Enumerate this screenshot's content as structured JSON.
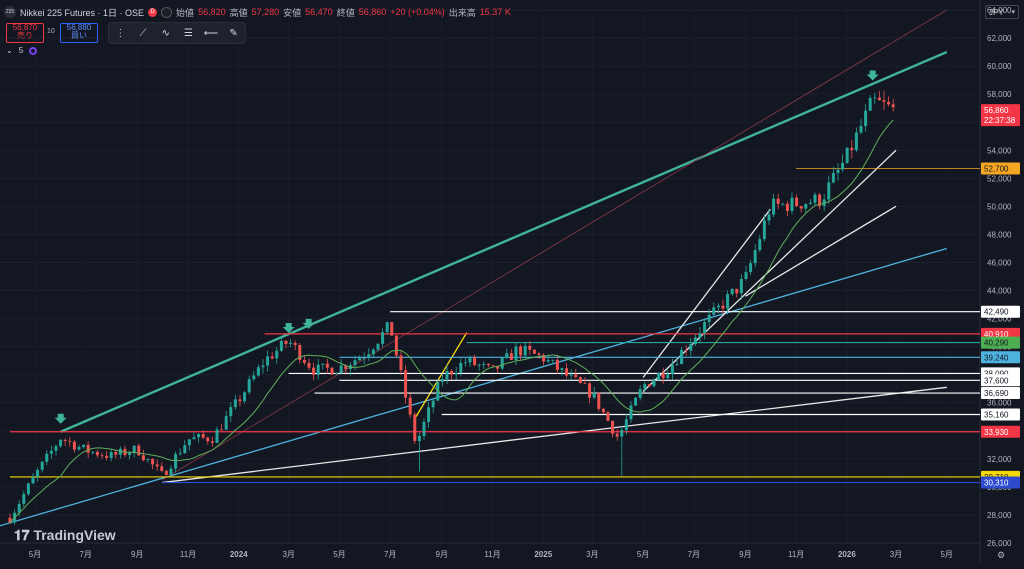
{
  "header": {
    "symbol_badge": "225",
    "title": "Nikkei 225 Futures · 1日 · OSE",
    "delayed_badge": "D",
    "open_label": "始値",
    "open": "56,820",
    "high_label": "高値",
    "high": "57,280",
    "low_label": "安値",
    "low": "56,470",
    "close_label": "終値",
    "close": "56,860",
    "change": "+20 (+0.04%)",
    "volume_label": "出来高",
    "volume": "15.37 K"
  },
  "trade": {
    "sell_price": "56,870",
    "sell_label": "売り",
    "buy_price": "56,880",
    "buy_label": "買い",
    "quantity": "10"
  },
  "indicator": {
    "count": "5"
  },
  "drawing_toolbar": {
    "tools": [
      "trend-line-icon",
      "curve-icon",
      "parallel-channel-icon",
      "ray-icon",
      "pen-icon"
    ]
  },
  "currency": "JPY",
  "branding": "TradingView",
  "colors": {
    "up": "#26a69a",
    "down": "#ef5350",
    "background": "#131722",
    "teal_trend": "#3fb49a",
    "blue_trend": "#4fb3e0",
    "white": "#e8e8e8",
    "red_level": "#f23645",
    "yellow_level": "#f5d90a",
    "navy_level": "#2e4bd0"
  },
  "chart_data": {
    "type": "candlestick",
    "y_axis": {
      "min": 26000,
      "max": 64000,
      "position": "right",
      "ticks": [
        "64,000",
        "62,000",
        "60,000",
        "58,000",
        "56,000",
        "54,000",
        "52,000",
        "50,000",
        "48,000",
        "46,000",
        "44,000",
        "42,000",
        "40,000",
        "38,000",
        "36,000",
        "34,000",
        "32,000",
        "30,000",
        "28,000",
        "26,000"
      ]
    },
    "x_axis": {
      "labels": [
        "5月",
        "7月",
        "9月",
        "11月",
        "2024",
        "3月",
        "5月",
        "7月",
        "9月",
        "11月",
        "2025",
        "3月",
        "5月",
        "7月",
        "9月",
        "11月",
        "2026",
        "3月",
        "5月"
      ]
    },
    "price_series": [
      {
        "date": "2023-04",
        "value": 27800
      },
      {
        "date": "2023-05",
        "value": 30800
      },
      {
        "date": "2023-06",
        "value": 33500
      },
      {
        "date": "2023-07",
        "value": 32600
      },
      {
        "date": "2023-08",
        "value": 32200
      },
      {
        "date": "2023-09",
        "value": 32700
      },
      {
        "date": "2023-10",
        "value": 30800
      },
      {
        "date": "2023-11",
        "value": 33400
      },
      {
        "date": "2023-12",
        "value": 33500
      },
      {
        "date": "2024-01",
        "value": 36200
      },
      {
        "date": "2024-02",
        "value": 39000
      },
      {
        "date": "2024-03",
        "value": 40400
      },
      {
        "date": "2024-04",
        "value": 38300
      },
      {
        "date": "2024-05",
        "value": 38500
      },
      {
        "date": "2024-06",
        "value": 39500
      },
      {
        "date": "2024-07",
        "value": 41500
      },
      {
        "date": "2024-08",
        "value": 33000
      },
      {
        "date": "2024-09",
        "value": 37800
      },
      {
        "date": "2024-10",
        "value": 39000
      },
      {
        "date": "2024-11",
        "value": 38200
      },
      {
        "date": "2024-12",
        "value": 39800
      },
      {
        "date": "2025-01",
        "value": 39200
      },
      {
        "date": "2025-02",
        "value": 37800
      },
      {
        "date": "2025-03",
        "value": 36600
      },
      {
        "date": "2025-04",
        "value": 33500
      },
      {
        "date": "2025-05",
        "value": 37200
      },
      {
        "date": "2025-06",
        "value": 38500
      },
      {
        "date": "2025-07",
        "value": 40700
      },
      {
        "date": "2025-08",
        "value": 42800
      },
      {
        "date": "2025-09",
        "value": 44800
      },
      {
        "date": "2025-10",
        "value": 50000
      },
      {
        "date": "2025-11",
        "value": 50200
      },
      {
        "date": "2025-12",
        "value": 50500
      },
      {
        "date": "2026-01",
        "value": 53500
      },
      {
        "date": "2026-02",
        "value": 57500
      },
      {
        "date": "2026-02-27",
        "value": 56860
      }
    ],
    "horizontal_levels": [
      {
        "value": 42490,
        "label": "42,490",
        "color": "#ffffff",
        "label_bg": "#ffffff",
        "label_fg": "#131722",
        "from": "2024-07"
      },
      {
        "value": 40910,
        "label": "40,910",
        "color": "#f23645",
        "label_bg": "#f23645",
        "label_fg": "#ffffff",
        "from": "2024-02"
      },
      {
        "value": 40290,
        "label": "40,290",
        "color": "#26a69a",
        "label_bg": "#4caf50",
        "label_fg": "#131722",
        "from": "2024-10"
      },
      {
        "value": 39240,
        "label": "39,240",
        "color": "#4fb3e0",
        "label_bg": "#4fb3e0",
        "label_fg": "#131722",
        "from": "2024-05"
      },
      {
        "value": 38090,
        "label": "38,090",
        "color": "#ffffff",
        "label_bg": "#ffffff",
        "label_fg": "#131722",
        "from": "2024-03"
      },
      {
        "value": 37600,
        "label": "37,600",
        "color": "#ffffff",
        "label_bg": "#ffffff",
        "label_fg": "#131722",
        "from": "2024-05"
      },
      {
        "value": 36690,
        "label": "36,690",
        "color": "#ffffff",
        "label_bg": "#ffffff",
        "label_fg": "#131722",
        "from": "2024-04"
      },
      {
        "value": 35160,
        "label": "35,160",
        "color": "#ffffff",
        "label_bg": "#ffffff",
        "label_fg": "#131722",
        "from": "2024-09"
      },
      {
        "value": 33930,
        "label": "33,930",
        "color": "#f23645",
        "label_bg": "#f23645",
        "label_fg": "#ffffff",
        "from": "2023-04"
      },
      {
        "value": 30710,
        "label": "30,710",
        "color": "#f5d90a",
        "label_bg": "#f5d90a",
        "label_fg": "#131722",
        "from": "2023-04"
      },
      {
        "value": 30310,
        "label": "30,310",
        "color": "#2e4bd0",
        "label_bg": "#2e4bd0",
        "label_fg": "#ffffff",
        "from": "2023-10"
      },
      {
        "value": 52700,
        "label": "52,700",
        "color": "#f5a623",
        "label_bg": "#f5a623",
        "label_fg": "#131722",
        "from": "2025-11"
      }
    ],
    "last_price": {
      "value": 56860,
      "label": "56,860",
      "countdown": "22:37:38",
      "color": "#f23645"
    },
    "trend_lines": [
      {
        "name": "teal",
        "from": {
          "date": "2023-06",
          "value": 33930
        },
        "to": {
          "date": "2026-05",
          "value": 61000
        },
        "color": "#3fb49a"
      },
      {
        "name": "blue",
        "from": {
          "date": "2023-03",
          "value": 26900
        },
        "to": {
          "date": "2026-05",
          "value": 47000
        },
        "color": "#4fb3e0"
      },
      {
        "name": "red-thin",
        "from": {
          "date": "2023-10",
          "value": 30500
        },
        "to": {
          "date": "2026-05",
          "value": 64000
        },
        "color": "#8a3a44"
      },
      {
        "name": "white-long",
        "from": {
          "date": "2023-10",
          "value": 30310
        },
        "to": {
          "date": "2026-05",
          "value": 37100
        },
        "color": "#e8e8e8"
      },
      {
        "name": "white-channel-upper",
        "from": {
          "date": "2025-05",
          "value": 37800
        },
        "to": {
          "date": "2025-10",
          "value": 49800
        },
        "color": "#e8e8e8"
      },
      {
        "name": "white-channel-lower",
        "from": {
          "date": "2025-05",
          "value": 36800
        },
        "to": {
          "date": "2026-03",
          "value": 54000
        },
        "color": "#e8e8e8"
      },
      {
        "name": "white-short",
        "from": {
          "date": "2025-09",
          "value": 43600
        },
        "to": {
          "date": "2026-03",
          "value": 50000
        },
        "color": "#e8e8e8"
      },
      {
        "name": "yellow-wedge",
        "from": {
          "date": "2024-08",
          "value": 35000
        },
        "to": {
          "date": "2024-10",
          "value": 41000
        },
        "color": "#f5d90a"
      }
    ],
    "markers": [
      {
        "date": "2023-06",
        "value": 33930
      },
      {
        "date": "2024-03",
        "value": 40400
      },
      {
        "date": "2024-03-25",
        "value": 40700
      },
      {
        "date": "2026-02",
        "value": 58400
      }
    ],
    "grid": true
  }
}
